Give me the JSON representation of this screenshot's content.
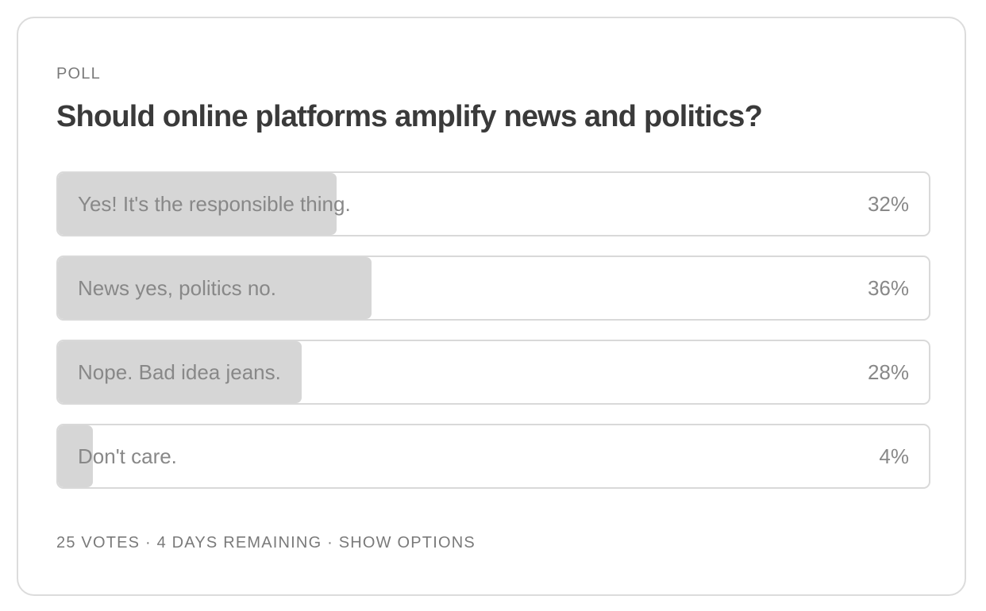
{
  "poll": {
    "kicker": "POLL",
    "question": "Should online platforms amplify news and politics?",
    "options": [
      {
        "label": "Yes! It's the responsible thing.",
        "percent_label": "32%",
        "percent": 32
      },
      {
        "label": "News yes, politics no.",
        "percent_label": "36%",
        "percent": 36
      },
      {
        "label": "Nope. Bad idea jeans.",
        "percent_label": "28%",
        "percent": 28
      },
      {
        "label": "Don't care.",
        "percent_label": "4%",
        "percent": 4
      }
    ],
    "footer": {
      "votes": "25 VOTES",
      "separator": " · ",
      "remaining": "4 DAYS REMAINING",
      "show_options": "SHOW OPTIONS"
    }
  },
  "colors": {
    "fill": "#d6d6d6",
    "border": "#d9d9d9",
    "text": "#888888",
    "title": "#3a3a3a"
  }
}
